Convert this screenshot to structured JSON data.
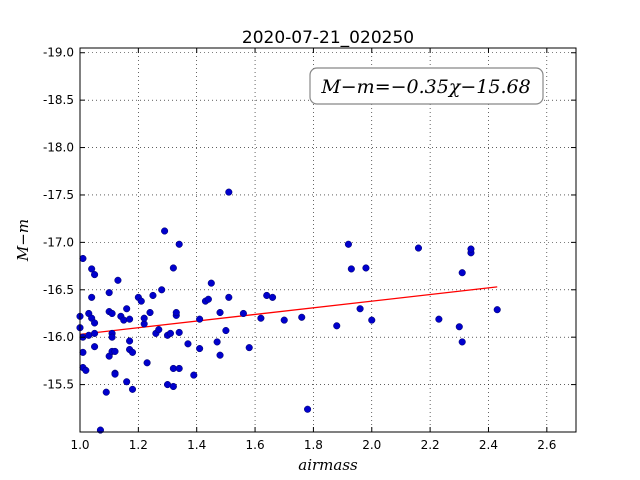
{
  "chart_data": {
    "type": "scatter",
    "title": "2020-07-21_020250",
    "xlabel": "airmass",
    "ylabel": "M−m",
    "xlim": [
      1.0,
      2.7
    ],
    "ylim": [
      -19.05,
      -15.0
    ],
    "y_inverted": true,
    "grid": true,
    "xticks": [
      "1.0",
      "1.2",
      "1.4",
      "1.6",
      "1.8",
      "2.0",
      "2.2",
      "2.4",
      "2.6"
    ],
    "yticks": [
      "-15.5",
      "-16.0",
      "-16.5",
      "-17.0",
      "-17.5",
      "-18.0",
      "-18.5",
      "-19.0"
    ],
    "annotation": "M−m=−0.35χ−15.68",
    "fit": {
      "slope": -0.35,
      "intercept": -15.68,
      "x_range": [
        1.0,
        2.43
      ],
      "color": "#ff0000"
    },
    "series": [
      {
        "color": "#0000cc",
        "points": [
          [
            1.0,
            -16.22
          ],
          [
            1.0,
            -16.1
          ],
          [
            1.01,
            -15.68
          ],
          [
            1.01,
            -15.84
          ],
          [
            1.01,
            -16.0
          ],
          [
            1.01,
            -16.83
          ],
          [
            1.02,
            -15.65
          ],
          [
            1.03,
            -16.02
          ],
          [
            1.03,
            -16.25
          ],
          [
            1.04,
            -16.42
          ],
          [
            1.04,
            -16.2
          ],
          [
            1.04,
            -16.72
          ],
          [
            1.05,
            -15.9
          ],
          [
            1.05,
            -16.04
          ],
          [
            1.05,
            -16.15
          ],
          [
            1.05,
            -16.66
          ],
          [
            1.07,
            -15.02
          ],
          [
            1.09,
            -15.42
          ],
          [
            1.1,
            -15.8
          ],
          [
            1.1,
            -16.27
          ],
          [
            1.1,
            -16.47
          ],
          [
            1.11,
            -16.04
          ],
          [
            1.11,
            -16.25
          ],
          [
            1.11,
            -15.85
          ],
          [
            1.11,
            -16.0
          ],
          [
            1.12,
            -15.62
          ],
          [
            1.12,
            -15.61
          ],
          [
            1.12,
            -15.85
          ],
          [
            1.13,
            -16.6
          ],
          [
            1.14,
            -16.22
          ],
          [
            1.15,
            -16.18
          ],
          [
            1.16,
            -15.53
          ],
          [
            1.16,
            -16.3
          ],
          [
            1.17,
            -15.87
          ],
          [
            1.17,
            -16.19
          ],
          [
            1.17,
            -15.96
          ],
          [
            1.18,
            -15.45
          ],
          [
            1.18,
            -15.84
          ],
          [
            1.2,
            -16.42
          ],
          [
            1.21,
            -16.38
          ],
          [
            1.22,
            -16.14
          ],
          [
            1.22,
            -16.2
          ],
          [
            1.23,
            -15.73
          ],
          [
            1.24,
            -16.26
          ],
          [
            1.25,
            -16.44
          ],
          [
            1.26,
            -16.04
          ],
          [
            1.27,
            -16.08
          ],
          [
            1.28,
            -16.5
          ],
          [
            1.29,
            -17.12
          ],
          [
            1.3,
            -15.5
          ],
          [
            1.3,
            -16.02
          ],
          [
            1.31,
            -16.04
          ],
          [
            1.32,
            -15.48
          ],
          [
            1.32,
            -15.67
          ],
          [
            1.32,
            -16.73
          ],
          [
            1.33,
            -16.23
          ],
          [
            1.33,
            -16.26
          ],
          [
            1.34,
            -15.67
          ],
          [
            1.34,
            -16.05
          ],
          [
            1.34,
            -16.98
          ],
          [
            1.37,
            -15.93
          ],
          [
            1.39,
            -15.6
          ],
          [
            1.41,
            -15.88
          ],
          [
            1.41,
            -16.19
          ],
          [
            1.43,
            -16.38
          ],
          [
            1.44,
            -16.4
          ],
          [
            1.45,
            -16.57
          ],
          [
            1.47,
            -15.95
          ],
          [
            1.48,
            -16.26
          ],
          [
            1.48,
            -15.81
          ],
          [
            1.5,
            -16.07
          ],
          [
            1.51,
            -16.42
          ],
          [
            1.51,
            -17.53
          ],
          [
            1.56,
            -16.25
          ],
          [
            1.58,
            -15.89
          ],
          [
            1.62,
            -16.2
          ],
          [
            1.64,
            -16.44
          ],
          [
            1.66,
            -16.42
          ],
          [
            1.7,
            -16.18
          ],
          [
            1.76,
            -16.21
          ],
          [
            1.78,
            -15.24
          ],
          [
            1.88,
            -16.12
          ],
          [
            1.92,
            -16.98
          ],
          [
            1.93,
            -16.72
          ],
          [
            1.96,
            -16.3
          ],
          [
            1.98,
            -16.73
          ],
          [
            2.0,
            -16.18
          ],
          [
            2.16,
            -16.94
          ],
          [
            2.23,
            -16.19
          ],
          [
            2.3,
            -16.11
          ],
          [
            2.31,
            -15.95
          ],
          [
            2.31,
            -16.68
          ],
          [
            2.34,
            -16.89
          ],
          [
            2.34,
            -16.93
          ],
          [
            2.43,
            -16.29
          ]
        ]
      }
    ]
  }
}
